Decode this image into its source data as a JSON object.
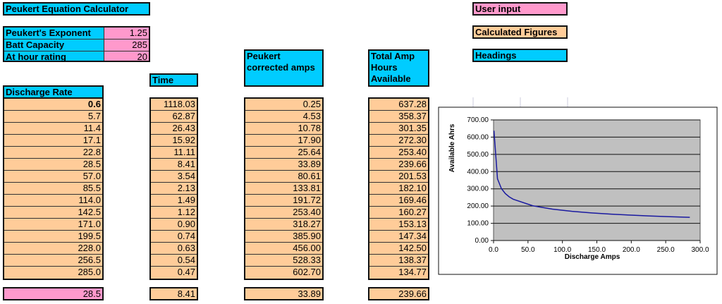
{
  "title": "Peukert Equation Calculator",
  "inputs": [
    {
      "label": "Peukert's Exponent",
      "value": "1.25"
    },
    {
      "label": "Batt Capacity",
      "value": "285"
    },
    {
      "label": "At hour rating",
      "value": "20"
    }
  ],
  "legend": {
    "user_input": "User input",
    "calculated": "Calculated Figures",
    "headings": "Headings"
  },
  "headers": {
    "discharge": "Discharge Rate",
    "time": "Time",
    "peukert": "Peukert corrected amps",
    "total": "Total Amp Hours Available"
  },
  "table": {
    "discharge": [
      "0.6",
      "5.7",
      "11.4",
      "17.1",
      "22.8",
      "28.5",
      "57.0",
      "85.5",
      "114.0",
      "142.5",
      "171.0",
      "199.5",
      "228.0",
      "256.5",
      "285.0"
    ],
    "time": [
      "1118.03",
      "62.87",
      "26.43",
      "15.92",
      "11.11",
      "8.41",
      "3.54",
      "2.13",
      "1.49",
      "1.12",
      "0.90",
      "0.74",
      "0.63",
      "0.54",
      "0.47"
    ],
    "peukert": [
      "0.25",
      "4.53",
      "10.78",
      "17.90",
      "25.64",
      "33.89",
      "80.61",
      "133.81",
      "191.72",
      "253.40",
      "318.27",
      "385.90",
      "456.00",
      "528.33",
      "602.70"
    ],
    "total": [
      "637.28",
      "358.37",
      "301.35",
      "272.30",
      "253.40",
      "239.66",
      "201.53",
      "182.10",
      "169.46",
      "160.27",
      "153.13",
      "147.34",
      "142.50",
      "138.37",
      "134.77"
    ]
  },
  "lookup": {
    "discharge": "28.5",
    "time": "8.41",
    "peukert": "33.89",
    "total": "239.66"
  },
  "chart_data": {
    "type": "line",
    "xlabel": "Discharge Amps",
    "ylabel": "Available Ahrs",
    "xlim": [
      0,
      300
    ],
    "ylim": [
      0,
      700
    ],
    "xticks": [
      "0.0",
      "50.0",
      "100.0",
      "150.0",
      "200.0",
      "250.0",
      "300.0"
    ],
    "yticks": [
      "0.00",
      "100.00",
      "200.00",
      "300.00",
      "400.00",
      "500.00",
      "600.00",
      "700.00"
    ],
    "x": [
      0.6,
      5.7,
      11.4,
      17.1,
      22.8,
      28.5,
      57.0,
      85.5,
      114.0,
      142.5,
      171.0,
      199.5,
      228.0,
      256.5,
      285.0
    ],
    "y": [
      637.28,
      358.37,
      301.35,
      272.3,
      253.4,
      239.66,
      201.53,
      182.1,
      169.46,
      160.27,
      153.13,
      147.34,
      142.5,
      138.37,
      134.77
    ],
    "grid": true,
    "line_color": "#1a1aa0",
    "plot_bg": "#c0c0c0"
  }
}
